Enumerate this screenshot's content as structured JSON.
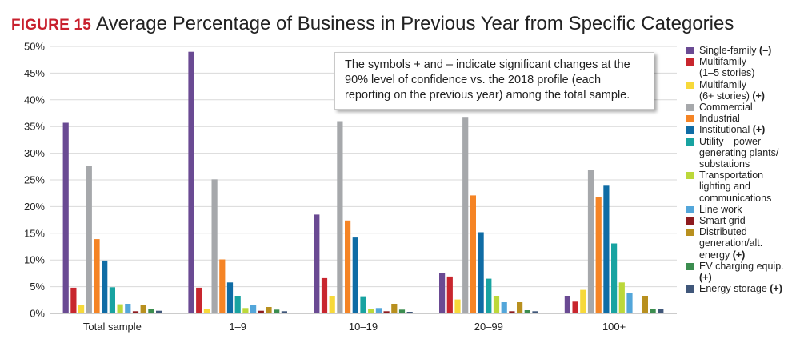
{
  "figure": {
    "label": "FIGURE 15",
    "title": "Average Percentage of Business in Previous Year from Specific Categories"
  },
  "note": "The symbols + and – indicate significant changes at the 90% level of confidence vs. the 2018 profile (each reporting on the previous year) among the total sample.",
  "chart_data": {
    "type": "bar",
    "title": "Average Percentage of Business in Previous Year from Specific Categories",
    "xlabel": "",
    "ylabel": "",
    "ylim": [
      0,
      50
    ],
    "yticks": [
      "0%",
      "5%",
      "10%",
      "15%",
      "20%",
      "25%",
      "30%",
      "35%",
      "40%",
      "45%",
      "50%"
    ],
    "grid": true,
    "legend_position": "right",
    "categories": [
      "Total sample",
      "1–9",
      "10–19",
      "20–99",
      "100+"
    ],
    "series": [
      {
        "name": "Single-family",
        "mark": "(–)",
        "lines": [
          "Single-family"
        ],
        "color": "#6a4a93",
        "values": [
          35.7,
          49.0,
          18.5,
          7.5,
          3.3
        ]
      },
      {
        "name": "Multifamily (1–5 stories)",
        "mark": "",
        "lines": [
          "Multifamily",
          "(1–5 stories)"
        ],
        "color": "#c8262e",
        "values": [
          4.8,
          4.8,
          6.6,
          6.9,
          2.2
        ]
      },
      {
        "name": "Multifamily (6+ stories)",
        "mark": "(+)",
        "lines": [
          "Multifamily",
          "(6+ stories)"
        ],
        "color": "#f7d93a",
        "values": [
          1.6,
          0.9,
          3.3,
          2.6,
          4.4
        ]
      },
      {
        "name": "Commercial",
        "mark": "",
        "lines": [
          "Commercial"
        ],
        "color": "#a6a8ab",
        "values": [
          27.6,
          25.1,
          36.0,
          36.8,
          26.9
        ]
      },
      {
        "name": "Industrial",
        "mark": "",
        "lines": [
          "Industrial"
        ],
        "color": "#f58425",
        "values": [
          13.9,
          10.1,
          17.4,
          22.1,
          21.8
        ]
      },
      {
        "name": "Institutional",
        "mark": "(+)",
        "lines": [
          "Institutional"
        ],
        "color": "#0f6ca5",
        "values": [
          9.9,
          5.8,
          14.2,
          15.2,
          23.9
        ]
      },
      {
        "name": "Utility—power generating plants/substations",
        "mark": "",
        "lines": [
          "Utility—power",
          "generating plants/",
          "substations"
        ],
        "color": "#18a3a1",
        "values": [
          4.9,
          3.3,
          3.2,
          6.5,
          13.1
        ]
      },
      {
        "name": "Transportation lighting and communications",
        "mark": "",
        "lines": [
          "Transportation",
          "lighting and",
          "communications"
        ],
        "color": "#bcd83a",
        "values": [
          1.7,
          1.0,
          0.8,
          3.3,
          5.8
        ]
      },
      {
        "name": "Line work",
        "mark": "",
        "lines": [
          "Line work"
        ],
        "color": "#53a6da",
        "values": [
          1.8,
          1.5,
          1.0,
          2.1,
          3.8
        ]
      },
      {
        "name": "Smart grid",
        "mark": "",
        "lines": [
          "Smart grid"
        ],
        "color": "#8e1b1f",
        "values": [
          0.4,
          0.5,
          0.4,
          0.4,
          0.0
        ]
      },
      {
        "name": "Distributed generation/alt. energy",
        "mark": "(+)",
        "lines": [
          "Distributed",
          "generation/alt.",
          "energy"
        ],
        "color": "#b8901f",
        "values": [
          1.5,
          1.2,
          1.8,
          2.1,
          3.3
        ]
      },
      {
        "name": "EV charging equip.",
        "mark": "(+)",
        "lines": [
          "EV charging equip."
        ],
        "color": "#3b8d4f",
        "values": [
          0.8,
          0.7,
          0.7,
          0.6,
          0.8
        ]
      },
      {
        "name": "Energy storage",
        "mark": "(+)",
        "lines": [
          "Energy storage"
        ],
        "color": "#40577a",
        "values": [
          0.5,
          0.4,
          0.3,
          0.4,
          0.8
        ]
      }
    ]
  }
}
